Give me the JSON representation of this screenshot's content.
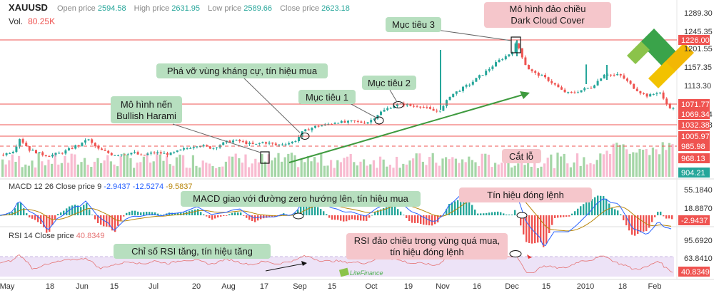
{
  "header": {
    "symbol": "XAUUSD",
    "open_label": "Open price",
    "open_value": "2594.58",
    "high_label": "High price",
    "high_value": "2631.95",
    "low_label": "Low price",
    "low_value": "2589.66",
    "close_label": "Close price",
    "close_value": "2623.18",
    "vol_label": "Vol.",
    "vol_value": "80.25K"
  },
  "macd_header": {
    "label": "MACD 12 26 Close price 9",
    "v1": "-2.9437",
    "v2": "-12.5274",
    "v3": "-9.5837"
  },
  "rsi_header": {
    "label": "RSI 14 Close price",
    "v1": "40.8349"
  },
  "colors": {
    "up": "#26a69a",
    "down": "#ef5350",
    "macd": "#2962ff",
    "signal": "#b8860b",
    "rsi": "#e57373",
    "rsi_band": "#ede3f7"
  },
  "chart_data": [
    {
      "type": "candlestick",
      "name": "price",
      "price_axis_ticks": [
        "1289.30",
        "1245.35",
        "1201.55",
        "1157.35",
        "1113.30",
        "1069.34",
        "1032.38",
        "985.98",
        "968.13"
      ],
      "ylim": [
        900,
        1300
      ],
      "series_points": [
        [
          0,
          955
        ],
        [
          8,
          958
        ],
        [
          18,
          965
        ],
        [
          26,
          993
        ],
        [
          32,
          982
        ],
        [
          40,
          966
        ],
        [
          48,
          962
        ],
        [
          56,
          956
        ],
        [
          66,
          953
        ],
        [
          76,
          956
        ],
        [
          86,
          960
        ],
        [
          96,
          968
        ],
        [
          104,
          975
        ],
        [
          112,
          978
        ],
        [
          120,
          994
        ],
        [
          128,
          980
        ],
        [
          136,
          968
        ],
        [
          146,
          962
        ],
        [
          156,
          955
        ],
        [
          166,
          956
        ],
        [
          176,
          958
        ],
        [
          186,
          960
        ],
        [
          196,
          952
        ],
        [
          206,
          957
        ],
        [
          216,
          960
        ],
        [
          226,
          958
        ],
        [
          236,
          956
        ],
        [
          246,
          962
        ],
        [
          256,
          968
        ],
        [
          266,
          973
        ],
        [
          276,
          978
        ],
        [
          286,
          974
        ],
        [
          296,
          970
        ],
        [
          306,
          978
        ],
        [
          316,
          985
        ],
        [
          326,
          988
        ],
        [
          336,
          986
        ],
        [
          346,
          981
        ],
        [
          356,
          978
        ],
        [
          366,
          984
        ],
        [
          376,
          982
        ],
        [
          386,
          977
        ],
        [
          396,
          981
        ],
        [
          406,
          983
        ],
        [
          414,
          990
        ],
        [
          422,
          1008
        ],
        [
          432,
          1016
        ],
        [
          442,
          1022
        ],
        [
          452,
          1024
        ],
        [
          462,
          1028
        ],
        [
          472,
          1032
        ],
        [
          482,
          1030
        ],
        [
          492,
          1033
        ],
        [
          502,
          1031
        ],
        [
          512,
          1030
        ],
        [
          520,
          1038
        ],
        [
          530,
          1053
        ],
        [
          540,
          1062
        ],
        [
          550,
          1070
        ],
        [
          558,
          1072
        ],
        [
          566,
          1073
        ],
        [
          576,
          1068
        ],
        [
          586,
          1070
        ],
        [
          596,
          1064
        ],
        [
          604,
          1058
        ],
        [
          612,
          1056
        ],
        [
          620,
          1068
        ],
        [
          628,
          1092
        ],
        [
          638,
          1102
        ],
        [
          648,
          1112
        ],
        [
          658,
          1122
        ],
        [
          668,
          1136
        ],
        [
          678,
          1148
        ],
        [
          688,
          1162
        ],
        [
          698,
          1176
        ],
        [
          708,
          1186
        ],
        [
          716,
          1196
        ],
        [
          722,
          1218
        ],
        [
          728,
          1192
        ],
        [
          736,
          1160
        ],
        [
          746,
          1146
        ],
        [
          756,
          1140
        ],
        [
          766,
          1130
        ],
        [
          776,
          1118
        ],
        [
          786,
          1104
        ],
        [
          796,
          1098
        ],
        [
          806,
          1102
        ],
        [
          816,
          1108
        ],
        [
          826,
          1112
        ],
        [
          836,
          1128
        ],
        [
          846,
          1146
        ],
        [
          856,
          1140
        ],
        [
          866,
          1142
        ],
        [
          876,
          1128
        ],
        [
          886,
          1112
        ],
        [
          896,
          1100
        ],
        [
          906,
          1092
        ],
        [
          916,
          1098
        ],
        [
          922,
          1104
        ],
        [
          930,
          1076
        ],
        [
          940,
          1062
        ]
      ],
      "levels": [
        {
          "label": "1226.00",
          "value": 1226,
          "style": "solid",
          "color": "#ef5350"
        },
        {
          "label": "1071.77",
          "value": 1071.77,
          "style": "solid",
          "color": "#ef5350"
        },
        {
          "label": "1069.34",
          "value": 1069.34,
          "style": "none",
          "color": "#ef5350"
        },
        {
          "label": "1032.38",
          "value": 1032.38,
          "style": "solid",
          "color": "#ef5350"
        },
        {
          "label": "1005.97",
          "value": 1005.97,
          "style": "solid",
          "color": "#ef5350"
        },
        {
          "label": "985.98",
          "value": 985.98,
          "style": "dashed",
          "color": "#ef5350"
        },
        {
          "label": "968.13",
          "value": 968.13,
          "style": "none",
          "color": "#ef5350"
        },
        {
          "label": "904.21",
          "value": 904.21,
          "style": "none",
          "color": "#26a69a"
        }
      ],
      "annotations": [
        {
          "text": "Mô hình nến\nBullish Harami",
          "style": "green"
        },
        {
          "text": "Phá vỡ vùng kháng cự, tín hiệu mua",
          "style": "green"
        },
        {
          "text": "Mục tiêu 1",
          "style": "green"
        },
        {
          "text": "Mục tiêu 2",
          "style": "green"
        },
        {
          "text": "Mục tiêu 3",
          "style": "green"
        },
        {
          "text": "Mô hình đảo chiều\nDark Cloud Cover",
          "style": "red"
        },
        {
          "text": "Cắt lỗ",
          "style": "red"
        }
      ]
    },
    {
      "type": "line",
      "name": "MACD",
      "axis_ticks": [
        "55.1840",
        "18.8870",
        "-2.9437"
      ],
      "annotations": [
        {
          "text": "MACD giao với đường zero hướng lên, tín hiệu mua",
          "style": "green"
        },
        {
          "text": "Tín hiệu đóng lệnh",
          "style": "red"
        }
      ]
    },
    {
      "type": "line",
      "name": "RSI",
      "axis_ticks": [
        "95.6920",
        "63.8410",
        "40.8349"
      ],
      "annotations": [
        {
          "text": "Chỉ số RSI tăng, tín hiệu tăng",
          "style": "green"
        },
        {
          "text": "RSI đảo chiều trong vùng quá mua,\ntín hiệu đóng lệnh",
          "style": "red"
        }
      ]
    }
  ],
  "x_axis_labels": [
    "May",
    "18",
    "Jun",
    "15",
    "Jul",
    "20",
    "Aug",
    "17",
    "Sep",
    "15",
    "Oct",
    "19",
    "Nov",
    "16",
    "Dec",
    "15",
    "2010",
    "18",
    "Feb"
  ],
  "watermark": "LiteFinance"
}
